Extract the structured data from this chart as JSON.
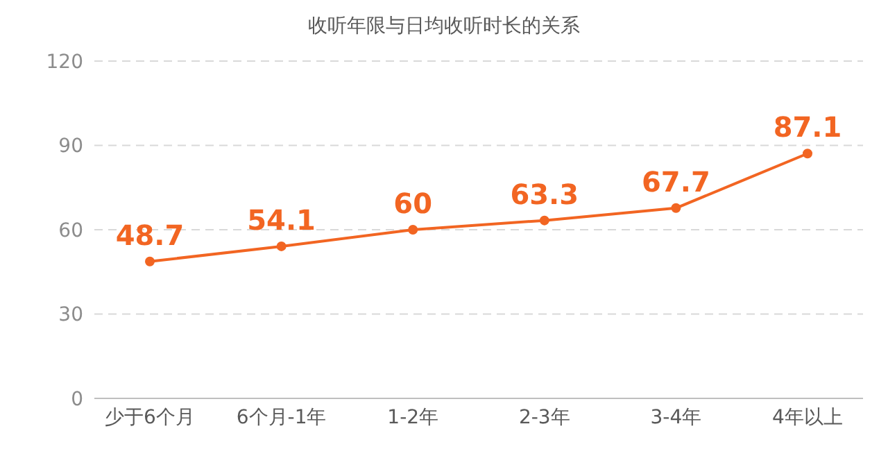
{
  "chart_data": {
    "type": "line",
    "title": "收听年限与日均收听时长的关系",
    "categories": [
      "少于6个月",
      "6个月-1年",
      "1-2年",
      "2-3年",
      "3-4年",
      "4年以上"
    ],
    "series": [
      {
        "color": "#f26522",
        "values": [
          48.7,
          54.1,
          60,
          63.3,
          67.7,
          87.1
        ]
      }
    ],
    "ylim": [
      0,
      120
    ],
    "yticks": [
      0,
      30,
      60,
      90,
      120
    ],
    "grid": "y",
    "data_labels": true,
    "marker": "circle",
    "line_style": "solid"
  }
}
